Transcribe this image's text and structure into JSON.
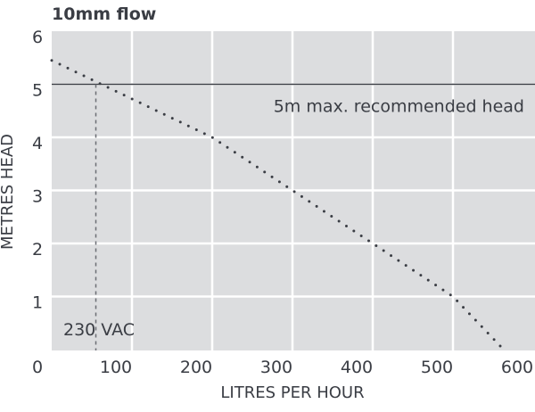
{
  "chart_data": {
    "type": "line",
    "title": "10mm flow",
    "xlabel": "LITRES PER HOUR",
    "ylabel": "METRES HEAD",
    "xlim": [
      0,
      600
    ],
    "ylim": [
      0,
      6
    ],
    "x_ticks": [
      "0",
      "100",
      "200",
      "300",
      "400",
      "500",
      "600"
    ],
    "y_ticks": [
      "0",
      "1",
      "2",
      "3",
      "4",
      "5",
      "6"
    ],
    "grid": true,
    "background": "#dcdddf",
    "series": [
      {
        "name": "230 VAC",
        "style": "dotted",
        "color": "#3a3d44",
        "points": [
          [
            0,
            5.45
          ],
          [
            55,
            5.05
          ],
          [
            200,
            4.0
          ],
          [
            300,
            3.0
          ],
          [
            400,
            2.0
          ],
          [
            500,
            1.0
          ],
          [
            560,
            0.05
          ]
        ]
      }
    ],
    "reference_line": {
      "y": 5,
      "label": "5m max. recommended head",
      "color": "#3a3d44"
    },
    "marker_line": {
      "x": 55,
      "style": "dashed"
    },
    "annotation": "230 VAC"
  }
}
